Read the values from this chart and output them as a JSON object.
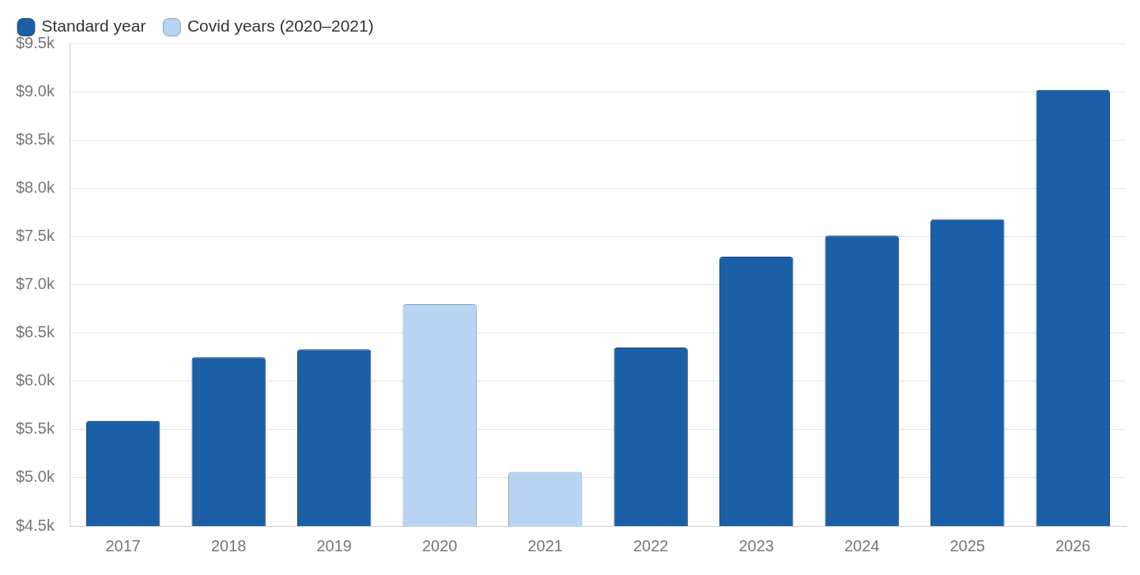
{
  "chart_data": {
    "type": "bar",
    "categories": [
      "2017",
      "2018",
      "2019",
      "2020",
      "2021",
      "2022",
      "2023",
      "2024",
      "2025",
      "2026"
    ],
    "series": [
      {
        "name": "Standard year",
        "color": "#1b5fa6",
        "values": [
          5590,
          6250,
          6330,
          null,
          null,
          6350,
          7290,
          7510,
          7680,
          9020
        ]
      },
      {
        "name": "Covid years (2020–2021)",
        "color": "#b7d5f2",
        "values": [
          null,
          null,
          null,
          6800,
          5060,
          null,
          null,
          null,
          null,
          null
        ]
      }
    ],
    "ylim": [
      4500,
      9500
    ],
    "yticks": [
      {
        "value": 4500,
        "label": "$4.5k"
      },
      {
        "value": 5000,
        "label": "$5.0k"
      },
      {
        "value": 5500,
        "label": "$5.5k"
      },
      {
        "value": 6000,
        "label": "$6.0k"
      },
      {
        "value": 6500,
        "label": "$6.5k"
      },
      {
        "value": 7000,
        "label": "$7.0k"
      },
      {
        "value": 7500,
        "label": "$7.5k"
      },
      {
        "value": 8000,
        "label": "$8.0k"
      },
      {
        "value": 8500,
        "label": "$8.5k"
      },
      {
        "value": 9000,
        "label": "$9.0k"
      },
      {
        "value": 9500,
        "label": "$9.5k"
      }
    ],
    "grid": "y",
    "legend": "top left"
  }
}
